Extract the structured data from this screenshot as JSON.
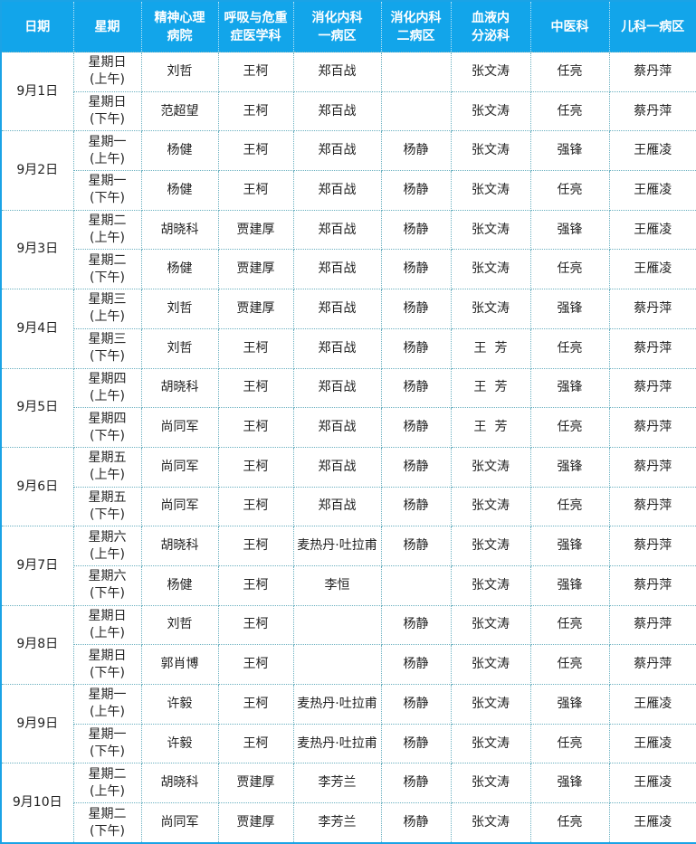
{
  "headers": [
    "日期",
    "星期",
    "精神心理\n病院",
    "呼吸与危重\n症医学科",
    "消化内科\n一病区",
    "消化内科\n二病区",
    "血液内\n分泌科",
    "中医科",
    "儿科一病区"
  ],
  "days": [
    {
      "date": "9月1日",
      "slots": [
        {
          "weekday": "星期日",
          "period": "(上午)",
          "cells": [
            "刘哲",
            "王柯",
            "郑百战",
            "",
            "张文涛",
            "任亮",
            "蔡丹萍"
          ]
        },
        {
          "weekday": "星期日",
          "period": "(下午)",
          "cells": [
            "范超望",
            "王柯",
            "郑百战",
            "",
            "张文涛",
            "任亮",
            "蔡丹萍"
          ]
        }
      ]
    },
    {
      "date": "9月2日",
      "slots": [
        {
          "weekday": "星期一",
          "period": "(上午)",
          "cells": [
            "杨健",
            "王柯",
            "郑百战",
            "杨静",
            "张文涛",
            "强锋",
            "王雁凌"
          ]
        },
        {
          "weekday": "星期一",
          "period": "(下午)",
          "cells": [
            "杨健",
            "王柯",
            "郑百战",
            "杨静",
            "张文涛",
            "任亮",
            "王雁凌"
          ]
        }
      ]
    },
    {
      "date": "9月3日",
      "slots": [
        {
          "weekday": "星期二",
          "period": "(上午)",
          "cells": [
            "胡晓科",
            "贾建厚",
            "郑百战",
            "杨静",
            "张文涛",
            "强锋",
            "王雁凌"
          ]
        },
        {
          "weekday": "星期二",
          "period": "(下午)",
          "cells": [
            "杨健",
            "贾建厚",
            "郑百战",
            "杨静",
            "张文涛",
            "任亮",
            "王雁凌"
          ]
        }
      ]
    },
    {
      "date": "9月4日",
      "slots": [
        {
          "weekday": "星期三",
          "period": "(上午)",
          "cells": [
            "刘哲",
            "贾建厚",
            "郑百战",
            "杨静",
            "张文涛",
            "强锋",
            "蔡丹萍"
          ]
        },
        {
          "weekday": "星期三",
          "period": "(下午)",
          "cells": [
            "刘哲",
            "王柯",
            "郑百战",
            "杨静",
            "王  芳",
            "任亮",
            "蔡丹萍"
          ]
        }
      ]
    },
    {
      "date": "9月5日",
      "slots": [
        {
          "weekday": "星期四",
          "period": "(上午)",
          "cells": [
            "胡晓科",
            "王柯",
            "郑百战",
            "杨静",
            "王  芳",
            "强锋",
            "蔡丹萍"
          ]
        },
        {
          "weekday": "星期四",
          "period": "(下午)",
          "cells": [
            "尚同军",
            "王柯",
            "郑百战",
            "杨静",
            "王  芳",
            "任亮",
            "蔡丹萍"
          ]
        }
      ]
    },
    {
      "date": "9月6日",
      "slots": [
        {
          "weekday": "星期五",
          "period": "(上午)",
          "cells": [
            "尚同军",
            "王柯",
            "郑百战",
            "杨静",
            "张文涛",
            "强锋",
            "蔡丹萍"
          ]
        },
        {
          "weekday": "星期五",
          "period": "(下午)",
          "cells": [
            "尚同军",
            "王柯",
            "郑百战",
            "杨静",
            "张文涛",
            "任亮",
            "蔡丹萍"
          ]
        }
      ]
    },
    {
      "date": "9月7日",
      "slots": [
        {
          "weekday": "星期六",
          "period": "(上午)",
          "cells": [
            "胡晓科",
            "王柯",
            "麦热丹·吐拉甫",
            "杨静",
            "张文涛",
            "强锋",
            "蔡丹萍"
          ]
        },
        {
          "weekday": "星期六",
          "period": "(下午)",
          "cells": [
            "杨健",
            "王柯",
            "李恒",
            "",
            "张文涛",
            "强锋",
            "蔡丹萍"
          ]
        }
      ]
    },
    {
      "date": "9月8日",
      "slots": [
        {
          "weekday": "星期日",
          "period": "(上午)",
          "cells": [
            "刘哲",
            "王柯",
            "",
            "杨静",
            "张文涛",
            "任亮",
            "蔡丹萍"
          ]
        },
        {
          "weekday": "星期日",
          "period": "(下午)",
          "cells": [
            "郭肖博",
            "王柯",
            "",
            "杨静",
            "张文涛",
            "任亮",
            "蔡丹萍"
          ]
        }
      ]
    },
    {
      "date": "9月9日",
      "slots": [
        {
          "weekday": "星期一",
          "period": "(上午)",
          "cells": [
            "许毅",
            "王柯",
            "麦热丹·吐拉甫",
            "杨静",
            "张文涛",
            "强锋",
            "王雁凌"
          ]
        },
        {
          "weekday": "星期一",
          "period": "(下午)",
          "cells": [
            "许毅",
            "王柯",
            "麦热丹·吐拉甫",
            "杨静",
            "张文涛",
            "任亮",
            "王雁凌"
          ]
        }
      ]
    },
    {
      "date": "9月10日",
      "slots": [
        {
          "weekday": "星期二",
          "period": "(上午)",
          "cells": [
            "胡晓科",
            "贾建厚",
            "李芳兰",
            "杨静",
            "张文涛",
            "强锋",
            "王雁凌"
          ]
        },
        {
          "weekday": "星期二",
          "period": "(下午)",
          "cells": [
            "尚同军",
            "贾建厚",
            "李芳兰",
            "杨静",
            "张文涛",
            "任亮",
            "王雁凌"
          ]
        }
      ]
    }
  ]
}
